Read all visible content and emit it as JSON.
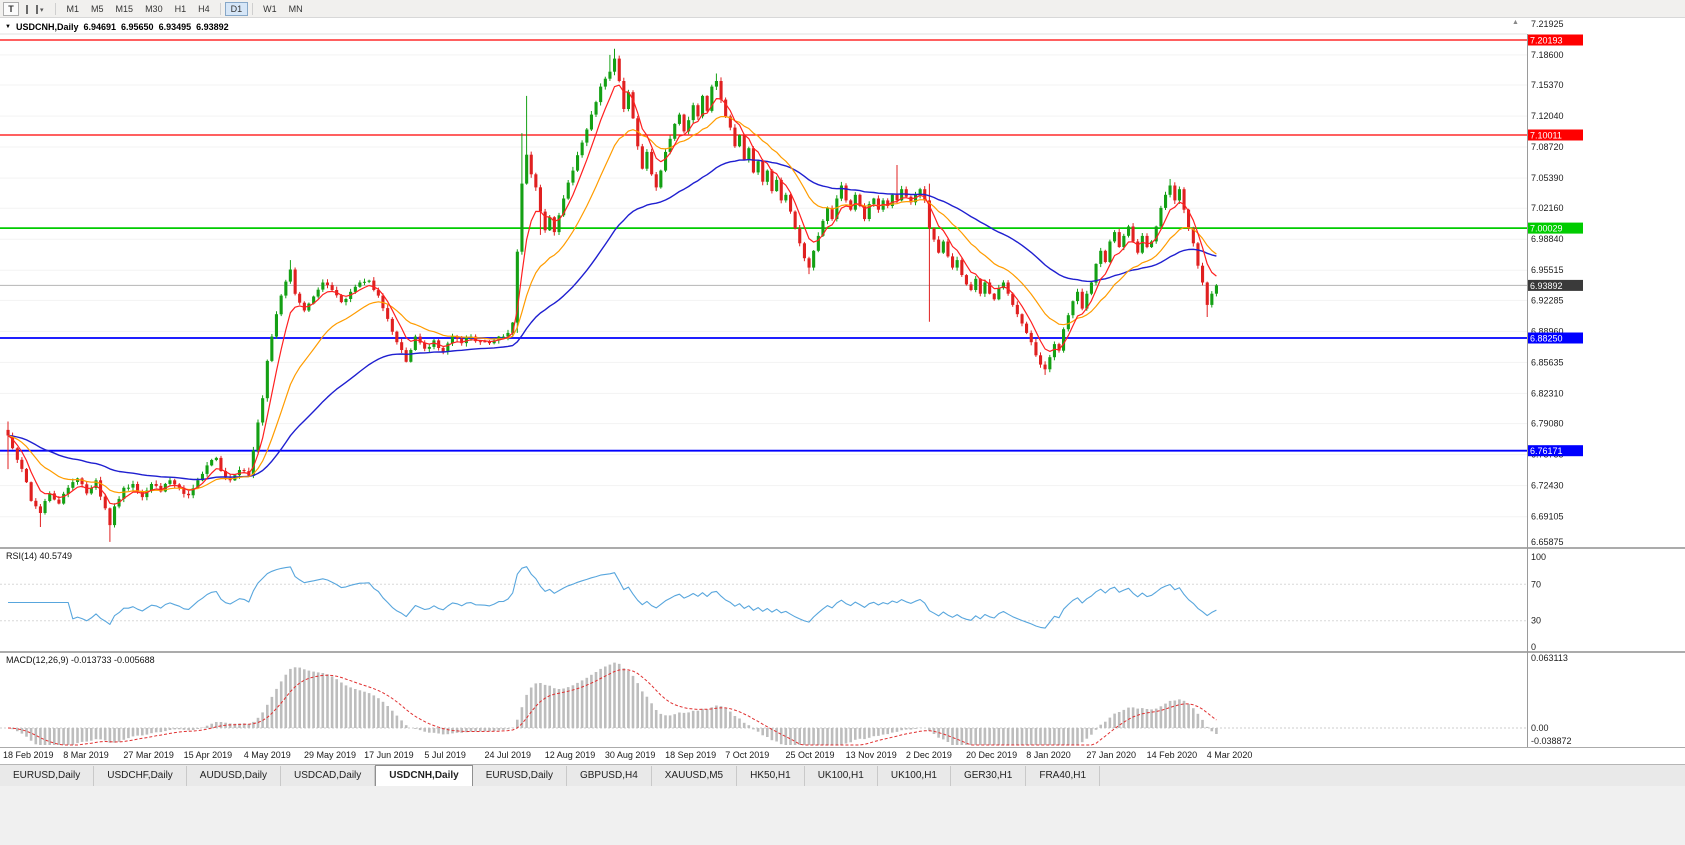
{
  "toolbar": {
    "t_button_label": "T",
    "timeframes": [
      "M1",
      "M5",
      "M15",
      "M30",
      "H1",
      "H4",
      "D1",
      "W1",
      "MN"
    ],
    "active": "D1"
  },
  "chart_header": {
    "symbol": "USDCNH,Daily",
    "open": "6.94691",
    "high": "6.95650",
    "low": "6.93495",
    "close": "6.93892"
  },
  "rsi_panel": {
    "label": "RSI(14) 40.5749",
    "value": 40.5749,
    "scale_labels": [
      "100",
      "70",
      "30",
      "0"
    ]
  },
  "macd_panel": {
    "label": "MACD(12,26,9) -0.013733 -0.005688",
    "macd_value": -0.013733,
    "signal_value": -0.005688,
    "scale_labels": [
      "0.063113",
      "0.00",
      "-0.038872"
    ]
  },
  "tabs": {
    "items": [
      "EURUSD,Daily",
      "USDCHF,Daily",
      "AUDUSD,Daily",
      "USDCAD,Daily",
      "USDCNH,Daily",
      "EURUSD,Daily",
      "GBPUSD,H4",
      "XAUUSD,M5",
      "HK50,H1",
      "UK100,H1",
      "UK100,H1",
      "GER30,H1",
      "FRA40,H1"
    ],
    "active_index": 4
  },
  "chart_data": {
    "type": "candlestick",
    "symbol": "USDCNH",
    "timeframe": "Daily",
    "bars": 262,
    "x_label_step": 13,
    "x_labels": [
      "18 Feb 2019",
      "8 Mar 2019",
      "27 Mar 2019",
      "15 Apr 2019",
      "4 May 2019",
      "29 May 2019",
      "17 Jun 2019",
      "5 Jul 2019",
      "24 Jul 2019",
      "12 Aug 2019",
      "30 Aug 2019",
      "18 Sep 2019",
      "7 Oct 2019",
      "25 Oct 2019",
      "13 Nov 2019",
      "2 Dec 2019",
      "20 Dec 2019",
      "8 Jan 2020",
      "27 Jan 2020",
      "14 Feb 2020",
      "4 Mar 2020"
    ],
    "y_ticks": [
      "7.21925",
      "7.18600",
      "7.15370",
      "7.12040",
      "7.08720",
      "7.05390",
      "7.02160",
      "6.98840",
      "6.95515",
      "6.92285",
      "6.88960",
      "6.85635",
      "6.82310",
      "6.79080",
      "6.75755",
      "6.72430",
      "6.69105",
      "6.65875"
    ],
    "levels": [
      {
        "price": 7.20193,
        "label": "7.20193",
        "color": "#ff0000",
        "width": 1.2
      },
      {
        "price": 7.10011,
        "label": "7.10011",
        "color": "#ff0000",
        "width": 1.2
      },
      {
        "price": 7.00029,
        "label": "7.00029",
        "color": "#00cc00",
        "width": 1.8
      },
      {
        "price": 6.8825,
        "label": "6.88250",
        "color": "#0000ff",
        "width": 1.8
      },
      {
        "price": 6.76171,
        "label": "6.76171",
        "color": "#0000ff",
        "width": 1.8
      }
    ],
    "current_price": {
      "price": 6.93892,
      "label": "6.93892",
      "badge_color": "#3a3a3a",
      "line_color": "#b4b4b4"
    },
    "candle_colors": {
      "up": "#14a014",
      "down": "#e02020"
    },
    "overlays": [
      {
        "type": "ema",
        "period": 6,
        "color": "#ff2020"
      },
      {
        "type": "ema",
        "period": 18,
        "color": "#ff9c00"
      },
      {
        "type": "ema",
        "period": 50,
        "color": "#1f1fd0"
      }
    ],
    "rsi": {
      "period": 14,
      "color": "#58a6dd",
      "levels": [
        70,
        30
      ]
    },
    "macd": {
      "fast": 12,
      "slow": 26,
      "signal": 9,
      "hist_color": "#bdbdbd",
      "signal_color": "#e03030"
    },
    "close_path": [
      [
        0,
        6.778
      ],
      [
        2,
        6.752
      ],
      [
        4,
        6.728
      ],
      [
        5,
        6.708
      ],
      [
        7,
        6.695
      ],
      [
        9,
        6.716
      ],
      [
        11,
        6.705
      ],
      [
        13,
        6.722
      ],
      [
        15,
        6.732
      ],
      [
        17,
        6.716
      ],
      [
        19,
        6.73
      ],
      [
        21,
        6.7
      ],
      [
        22,
        6.682
      ],
      [
        23,
        6.702
      ],
      [
        25,
        6.722
      ],
      [
        27,
        6.726
      ],
      [
        29,
        6.712
      ],
      [
        31,
        6.726
      ],
      [
        33,
        6.718
      ],
      [
        35,
        6.73
      ],
      [
        37,
        6.722
      ],
      [
        39,
        6.714
      ],
      [
        41,
        6.73
      ],
      [
        43,
        6.746
      ],
      [
        45,
        6.754
      ],
      [
        46,
        6.74
      ],
      [
        48,
        6.73
      ],
      [
        50,
        6.741
      ],
      [
        52,
        6.735
      ],
      [
        53,
        6.762
      ],
      [
        54,
        6.792
      ],
      [
        55,
        6.818
      ],
      [
        56,
        6.858
      ],
      [
        57,
        6.884
      ],
      [
        58,
        6.908
      ],
      [
        59,
        6.928
      ],
      [
        60,
        6.943
      ],
      [
        61,
        6.956
      ],
      [
        62,
        6.93
      ],
      [
        64,
        6.912
      ],
      [
        66,
        6.927
      ],
      [
        68,
        6.942
      ],
      [
        70,
        6.934
      ],
      [
        72,
        6.921
      ],
      [
        74,
        6.932
      ],
      [
        76,
        6.942
      ],
      [
        78,
        6.944
      ],
      [
        80,
        6.928
      ],
      [
        82,
        6.903
      ],
      [
        84,
        6.878
      ],
      [
        86,
        6.857
      ],
      [
        88,
        6.884
      ],
      [
        90,
        6.871
      ],
      [
        92,
        6.88
      ],
      [
        94,
        6.868
      ],
      [
        96,
        6.884
      ],
      [
        98,
        6.877
      ],
      [
        100,
        6.884
      ],
      [
        102,
        6.879
      ],
      [
        104,
        6.877
      ],
      [
        106,
        6.884
      ],
      [
        108,
        6.888
      ],
      [
        109,
        6.899
      ],
      [
        110,
        6.975
      ],
      [
        111,
        7.048
      ],
      [
        112,
        7.079
      ],
      [
        113,
        7.058
      ],
      [
        114,
        7.044
      ],
      [
        115,
        7.018
      ],
      [
        116,
        6.998
      ],
      [
        117,
        7.012
      ],
      [
        118,
        6.996
      ],
      [
        119,
        7.014
      ],
      [
        120,
        7.032
      ],
      [
        122,
        7.062
      ],
      [
        124,
        7.092
      ],
      [
        126,
        7.122
      ],
      [
        128,
        7.152
      ],
      [
        130,
        7.168
      ],
      [
        131,
        7.182
      ],
      [
        132,
        7.158
      ],
      [
        133,
        7.128
      ],
      [
        134,
        7.146
      ],
      [
        135,
        7.118
      ],
      [
        136,
        7.088
      ],
      [
        137,
        7.064
      ],
      [
        138,
        7.082
      ],
      [
        139,
        7.058
      ],
      [
        140,
        7.044
      ],
      [
        141,
        7.062
      ],
      [
        142,
        7.082
      ],
      [
        143,
        7.096
      ],
      [
        144,
        7.112
      ],
      [
        145,
        7.122
      ],
      [
        146,
        7.104
      ],
      [
        147,
        7.116
      ],
      [
        148,
        7.132
      ],
      [
        149,
        7.12
      ],
      [
        150,
        7.142
      ],
      [
        151,
        7.126
      ],
      [
        152,
        7.152
      ],
      [
        153,
        7.158
      ],
      [
        154,
        7.138
      ],
      [
        155,
        7.12
      ],
      [
        156,
        7.108
      ],
      [
        157,
        7.088
      ],
      [
        158,
        7.1
      ],
      [
        159,
        7.074
      ],
      [
        160,
        7.086
      ],
      [
        161,
        7.06
      ],
      [
        162,
        7.072
      ],
      [
        163,
        7.05
      ],
      [
        164,
        7.062
      ],
      [
        165,
        7.04
      ],
      [
        166,
        7.052
      ],
      [
        167,
        7.03
      ],
      [
        168,
        7.036
      ],
      [
        169,
        7.018
      ],
      [
        170,
        7.0
      ],
      [
        171,
        6.984
      ],
      [
        172,
        6.968
      ],
      [
        173,
        6.958
      ],
      [
        174,
        6.976
      ],
      [
        175,
        6.992
      ],
      [
        176,
        7.008
      ],
      [
        177,
        7.022
      ],
      [
        178,
        7.01
      ],
      [
        179,
        7.032
      ],
      [
        180,
        7.046
      ],
      [
        181,
        7.03
      ],
      [
        182,
        7.02
      ],
      [
        183,
        7.036
      ],
      [
        184,
        7.024
      ],
      [
        185,
        7.01
      ],
      [
        186,
        7.026
      ],
      [
        187,
        7.032
      ],
      [
        188,
        7.02
      ],
      [
        189,
        7.03
      ],
      [
        190,
        7.024
      ],
      [
        191,
        7.036
      ],
      [
        192,
        7.03
      ],
      [
        193,
        7.042
      ],
      [
        194,
        7.034
      ],
      [
        195,
        7.028
      ],
      [
        196,
        7.036
      ],
      [
        197,
        7.042
      ],
      [
        198,
        7.03
      ],
      [
        199,
        7.0
      ],
      [
        200,
        6.988
      ],
      [
        201,
        6.974
      ],
      [
        202,
        6.986
      ],
      [
        203,
        6.97
      ],
      [
        204,
        6.958
      ],
      [
        205,
        6.966
      ],
      [
        206,
        6.95
      ],
      [
        207,
        6.94
      ],
      [
        208,
        6.934
      ],
      [
        209,
        6.946
      ],
      [
        210,
        6.93
      ],
      [
        211,
        6.942
      ],
      [
        212,
        6.93
      ],
      [
        213,
        6.924
      ],
      [
        214,
        6.936
      ],
      [
        215,
        6.942
      ],
      [
        216,
        6.93
      ],
      [
        217,
        6.918
      ],
      [
        218,
        6.908
      ],
      [
        219,
        6.898
      ],
      [
        220,
        6.888
      ],
      [
        221,
        6.878
      ],
      [
        222,
        6.864
      ],
      [
        223,
        6.854
      ],
      [
        224,
        6.849
      ],
      [
        225,
        6.862
      ],
      [
        226,
        6.876
      ],
      [
        227,
        6.869
      ],
      [
        228,
        6.892
      ],
      [
        229,
        6.907
      ],
      [
        230,
        6.922
      ],
      [
        231,
        6.932
      ],
      [
        232,
        6.914
      ],
      [
        233,
        6.93
      ],
      [
        234,
        6.942
      ],
      [
        235,
        6.962
      ],
      [
        236,
        6.976
      ],
      [
        237,
        6.964
      ],
      [
        238,
        6.986
      ],
      [
        239,
        6.996
      ],
      [
        240,
        6.98
      ],
      [
        241,
        6.992
      ],
      [
        242,
        7.002
      ],
      [
        243,
        6.986
      ],
      [
        244,
        6.974
      ],
      [
        245,
        6.992
      ],
      [
        246,
        6.98
      ],
      [
        247,
        6.986
      ],
      [
        248,
        7.002
      ],
      [
        249,
        7.022
      ],
      [
        250,
        7.036
      ],
      [
        251,
        7.046
      ],
      [
        252,
        7.03
      ],
      [
        253,
        7.042
      ],
      [
        254,
        7.02
      ],
      [
        255,
        7.0
      ],
      [
        256,
        6.984
      ],
      [
        257,
        6.96
      ],
      [
        258,
        6.942
      ],
      [
        259,
        6.918
      ],
      [
        260,
        6.93
      ],
      [
        261,
        6.93892
      ]
    ],
    "wick_overrides": {
      "0": {
        "h": 6.793,
        "l": 6.742
      },
      "7": {
        "l": 6.68
      },
      "22": {
        "l": 6.664
      },
      "56": {
        "l": 6.82
      },
      "61": {
        "h": 6.966
      },
      "110": {
        "l": 6.888
      },
      "111": {
        "h": 7.102
      },
      "112": {
        "h": 7.142
      },
      "115": {
        "l": 6.993
      },
      "130": {
        "h": 7.186
      },
      "131": {
        "h": 7.1925
      },
      "153": {
        "h": 7.166
      },
      "173": {
        "l": 6.951
      },
      "192": {
        "h": 7.068
      },
      "199": {
        "h": 7.048,
        "l": 6.9
      },
      "224": {
        "l": 6.843
      },
      "251": {
        "h": 7.053
      },
      "259": {
        "l": 6.905
      }
    }
  }
}
